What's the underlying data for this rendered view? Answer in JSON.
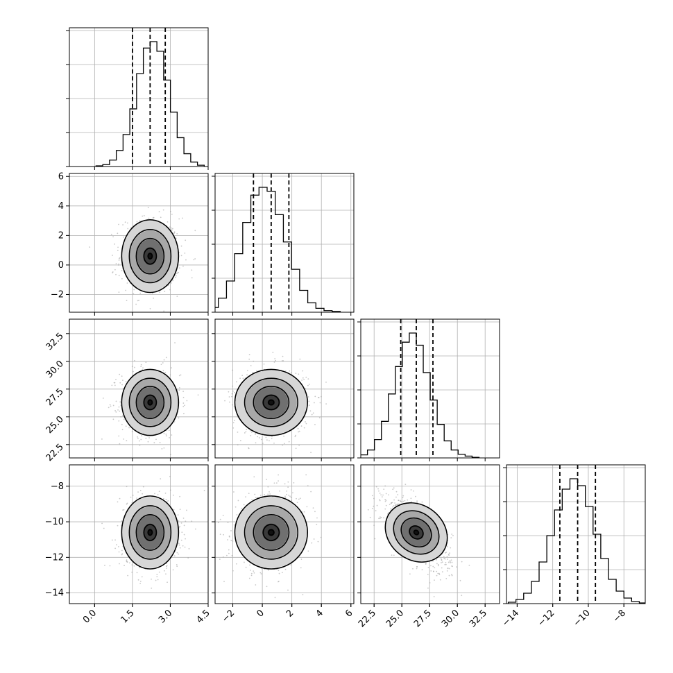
{
  "chart_data": {
    "type": "corner",
    "parameters": [
      {
        "axis_range": [
          -1.0,
          4.5
        ],
        "ticks": [
          "0.0",
          "1.5",
          "3.0",
          "4.5"
        ],
        "tick_values": [
          0.0,
          1.5,
          3.0,
          4.5
        ],
        "quantiles": [
          1.5,
          2.2,
          2.8
        ],
        "mean": 2.2,
        "sd": 0.55
      },
      {
        "axis_range": [
          -3.2,
          6.2
        ],
        "ticks": [
          "−2",
          "0",
          "2",
          "4",
          "6"
        ],
        "tick_values": [
          -2,
          0,
          2,
          4,
          6
        ],
        "quantiles": [
          -0.6,
          0.6,
          1.8
        ],
        "mean": 0.6,
        "sd": 1.2
      },
      {
        "axis_range": [
          21.3,
          33.8
        ],
        "ticks": [
          "22.5",
          "25.0",
          "27.5",
          "30.0",
          "32.5"
        ],
        "tick_values": [
          22.5,
          25.0,
          27.5,
          30.0,
          32.5
        ],
        "quantiles": [
          24.9,
          26.3,
          27.8
        ],
        "mean": 26.3,
        "sd": 1.45
      },
      {
        "axis_range": [
          -14.6,
          -6.8
        ],
        "ticks": [
          "−14",
          "−12",
          "−10",
          "−8"
        ],
        "tick_values": [
          -14,
          -12,
          -10,
          -8
        ],
        "quantiles": [
          -11.6,
          -10.6,
          -9.6
        ],
        "mean": -10.6,
        "sd": 1.0
      }
    ],
    "correlations": [
      {
        "pair": [
          1,
          0
        ],
        "rho": 0.0
      },
      {
        "pair": [
          2,
          0
        ],
        "rho": 0.0
      },
      {
        "pair": [
          2,
          1
        ],
        "rho": 0.0
      },
      {
        "pair": [
          3,
          0
        ],
        "rho": 0.0
      },
      {
        "pair": [
          3,
          1
        ],
        "rho": 0.1
      },
      {
        "pair": [
          3,
          2
        ],
        "rho": -0.65
      }
    ],
    "histogram_values": [
      [
        0.1,
        0.3,
        1.0,
        2.5,
        5.0,
        9.0,
        14.5,
        18.5,
        19.5,
        18.0,
        13.5,
        8.5,
        4.5,
        2.0,
        0.7,
        0.2
      ],
      [
        0.2,
        0.6,
        1.8,
        4.0,
        7.5,
        11.5,
        15.0,
        16.0,
        15.5,
        12.5,
        9.0,
        5.5,
        2.8,
        1.2,
        0.5,
        0.2,
        0.1
      ],
      [
        0.2,
        0.5,
        1.3,
        3.0,
        6.0,
        10.5,
        15.0,
        19.0,
        20.5,
        18.5,
        14.0,
        9.5,
        5.5,
        2.8,
        1.3,
        0.6,
        0.3,
        0.1
      ],
      [
        0.2,
        0.6,
        1.5,
        3.2,
        6.0,
        9.8,
        13.5,
        16.5,
        18.0,
        17.0,
        14.0,
        10.0,
        6.5,
        3.5,
        1.8,
        0.8,
        0.3,
        0.1
      ]
    ],
    "grid": true,
    "colors": {
      "contour": "#000000",
      "points": "#9a9a9a",
      "grid": "#b0b0b0"
    }
  }
}
